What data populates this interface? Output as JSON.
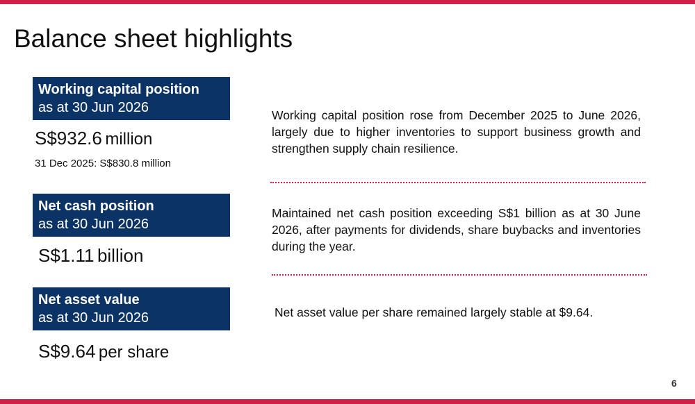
{
  "title": "Balance sheet highlights",
  "sections": [
    {
      "label_bold": "Working capital position",
      "label_sub": "as at 30 Jun 2026",
      "value_number": "S$932.6",
      "value_unit": "million",
      "comparison": "31 Dec 2025: S$830.8 million",
      "description": "Working capital position rose from December 2025 to June 2026, largely due to higher inventories to support business growth and strengthen supply chain resilience."
    },
    {
      "label_bold": "Net cash position",
      "label_sub": "as at 30 Jun 2026",
      "value_number": "S$1.11",
      "value_unit": "billion",
      "description": "Maintained net cash position exceeding S$1 billion as at 30 June 2026, after payments for dividends, share buybacks and inventories during the year."
    },
    {
      "label_bold": "Net asset value",
      "label_sub": "as at 30 Jun 2026",
      "value_number": "S$9.64",
      "value_unit": "per share",
      "description": "Net asset value per share remained largely stable at $9.64."
    }
  ],
  "page_number": "6",
  "colors": {
    "accent": "#d21f45",
    "label_background": "#0b3366"
  }
}
